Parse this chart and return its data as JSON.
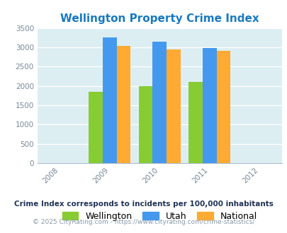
{
  "title": "Wellington Property Crime Index",
  "title_color": "#1a7abf",
  "years": [
    2009,
    2010,
    2011
  ],
  "x_ticks": [
    2008,
    2009,
    2010,
    2011,
    2012
  ],
  "wellington": [
    1850,
    2000,
    2110
  ],
  "utah": [
    3250,
    3150,
    2975
  ],
  "national": [
    3040,
    2950,
    2900
  ],
  "wellington_color": "#88cc33",
  "utah_color": "#4499ee",
  "national_color": "#ffaa33",
  "ylim": [
    0,
    3500
  ],
  "yticks": [
    0,
    500,
    1000,
    1500,
    2000,
    2500,
    3000,
    3500
  ],
  "bar_width": 0.28,
  "chart_bg": "#ddeef2",
  "legend_labels": [
    "Wellington",
    "Utah",
    "National"
  ],
  "footnote1": "Crime Index corresponds to incidents per 100,000 inhabitants",
  "footnote2": "© 2025 CityRating.com - https://www.cityrating.com/crime-statistics/",
  "footnote1_color": "#223355",
  "footnote2_color": "#8899aa",
  "xlim_left": 2007.55,
  "xlim_right": 2012.45
}
